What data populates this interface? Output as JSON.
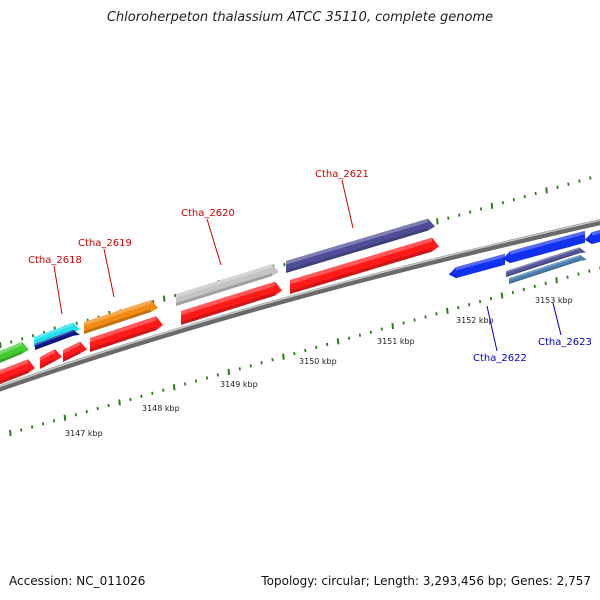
{
  "title": "Chloroherpeton thalassium ATCC 35110, complete genome",
  "footer": {
    "accession": "Accession: NC_011026",
    "summary": "Topology: circular; Length: 3,293,456 bp; Genes: 2,757"
  },
  "colors": {
    "backbone": "#8a8a8a",
    "tick": "#2e7d1e",
    "label_forward": "#cc0000",
    "label_reverse": "#0000cc",
    "cds": "#ff1a1a",
    "ruler_text": "#222222"
  },
  "ruler": {
    "labels": [
      "3147 kbp",
      "3148 kbp",
      "3149 kbp",
      "3150 kbp",
      "3151 kbp",
      "3152 kbp",
      "3153 kbp"
    ]
  },
  "gene_labels": [
    {
      "name": "Ctha_2618",
      "strand": "forward"
    },
    {
      "name": "Ctha_2619",
      "strand": "forward"
    },
    {
      "name": "Ctha_2620",
      "strand": "forward"
    },
    {
      "name": "Ctha_2621",
      "strand": "forward"
    },
    {
      "name": "Ctha_2622",
      "strand": "reverse"
    },
    {
      "name": "Ctha_2623",
      "strand": "reverse"
    }
  ],
  "features": [
    {
      "id": "gene-green-partial",
      "color": "#44cc33"
    },
    {
      "id": "gene-cyan-2618",
      "color": "#1ee0ee"
    },
    {
      "id": "gene-orange-2619",
      "color": "#f08a10"
    },
    {
      "id": "gene-gray-2620",
      "color": "#c4c4c4"
    },
    {
      "id": "gene-purple-2621",
      "color": "#4e4e96"
    },
    {
      "id": "gene-purple-2623",
      "color": "#55559a"
    },
    {
      "id": "gene-steelblue-2623",
      "color": "#4a7fb0"
    },
    {
      "id": "gene-blue-2622",
      "color": "#1230f0"
    }
  ]
}
